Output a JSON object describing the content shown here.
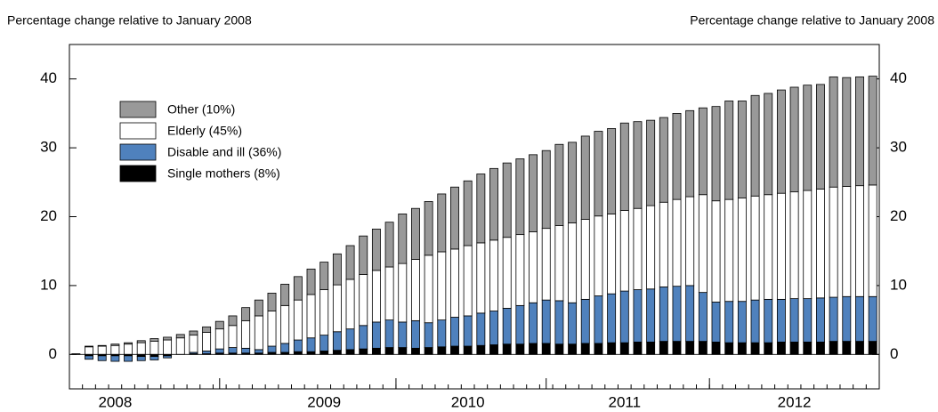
{
  "chart_data": {
    "type": "stacked_bar",
    "ylabel": "Percentage change relative to January 2008",
    "categories": [
      null,
      null,
      null,
      "2008",
      null,
      null,
      null,
      null,
      null,
      null,
      null,
      null,
      null,
      null,
      null,
      null,
      null,
      null,
      null,
      "2009",
      null,
      null,
      null,
      null,
      null,
      null,
      null,
      null,
      null,
      null,
      "2010",
      null,
      null,
      null,
      null,
      null,
      null,
      null,
      null,
      null,
      null,
      null,
      "2011",
      null,
      null,
      null,
      null,
      null,
      null,
      null,
      null,
      null,
      null,
      null,
      null,
      "2012",
      null,
      null,
      null,
      null,
      null,
      null
    ],
    "series": [
      {
        "name": "Single mothers (8%)",
        "color": "#000000",
        "values": [
          0,
          -0.2,
          -0.2,
          -0.2,
          -0.2,
          -0.3,
          -0.3,
          -0.2,
          0,
          0.1,
          0.1,
          0.2,
          0.2,
          0.2,
          0.2,
          0.3,
          0.3,
          0.4,
          0.4,
          0.5,
          0.6,
          0.7,
          0.8,
          0.9,
          1.0,
          1.0,
          0.9,
          1.0,
          1.1,
          1.2,
          1.2,
          1.3,
          1.4,
          1.5,
          1.5,
          1.6,
          1.6,
          1.5,
          1.5,
          1.6,
          1.6,
          1.7,
          1.7,
          1.8,
          1.8,
          1.9,
          1.9,
          1.9,
          1.9,
          1.8,
          1.7,
          1.7,
          1.7,
          1.7,
          1.8,
          1.8,
          1.8,
          1.8,
          1.9,
          1.9,
          1.9,
          1.9
        ]
      },
      {
        "name": "Disable and ill (36%)",
        "color": "#4f81bd",
        "values": [
          0,
          -0.5,
          -0.7,
          -0.8,
          -0.8,
          -0.6,
          -0.5,
          -0.3,
          0,
          0.2,
          0.4,
          0.6,
          0.8,
          0.7,
          0.5,
          0.9,
          1.3,
          1.7,
          2.0,
          2.3,
          2.7,
          3.0,
          3.4,
          3.8,
          4.0,
          3.7,
          4.0,
          3.6,
          3.9,
          4.2,
          4.4,
          4.7,
          4.9,
          5.2,
          5.6,
          5.9,
          6.3,
          6.3,
          6.0,
          6.4,
          6.9,
          7.1,
          7.5,
          7.6,
          7.7,
          7.9,
          8.0,
          8.1,
          7.1,
          5.8,
          6.0,
          6.0,
          6.2,
          6.3,
          6.2,
          6.3,
          6.3,
          6.4,
          6.4,
          6.5,
          6.5,
          6.5
        ]
      },
      {
        "name": "Elderly (45%)",
        "color": "#ffffff",
        "values": [
          0.1,
          1.1,
          1.2,
          1.3,
          1.5,
          1.7,
          1.9,
          2.1,
          2.4,
          2.5,
          2.7,
          2.9,
          3.2,
          4.0,
          4.9,
          5.1,
          5.5,
          5.8,
          6.3,
          6.6,
          6.8,
          7.2,
          7.4,
          7.5,
          7.7,
          8.5,
          8.9,
          9.8,
          9.9,
          9.9,
          10.2,
          10.2,
          10.3,
          10.3,
          10.3,
          10.3,
          10.4,
          10.9,
          11.6,
          11.6,
          11.6,
          11.6,
          11.7,
          11.8,
          12.1,
          12.3,
          12.6,
          12.9,
          14.2,
          14.7,
          14.8,
          15.0,
          15.1,
          15.2,
          15.4,
          15.5,
          15.7,
          15.8,
          16.0,
          16.0,
          16.1,
          16.2
        ]
      },
      {
        "name": "Other (10%)",
        "color": "#999999",
        "values": [
          0,
          0.1,
          0.1,
          0.2,
          0.2,
          0.3,
          0.4,
          0.4,
          0.5,
          0.6,
          0.8,
          1.1,
          1.4,
          1.9,
          2.3,
          2.6,
          3.1,
          3.4,
          3.7,
          4.0,
          4.5,
          4.9,
          5.6,
          6.0,
          6.5,
          7.2,
          7.4,
          7.8,
          8.4,
          9.0,
          9.4,
          10.0,
          10.4,
          10.8,
          11.0,
          11.2,
          11.3,
          11.8,
          11.7,
          12.1,
          12.3,
          12.4,
          12.7,
          12.6,
          12.4,
          12.3,
          12.5,
          12.5,
          12.6,
          13.7,
          14.3,
          14.1,
          14.6,
          14.7,
          15.0,
          15.2,
          15.3,
          15.2,
          16.0,
          15.8,
          15.8,
          15.8
        ]
      }
    ],
    "ylim": [
      -5,
      45
    ],
    "yticks": [
      0,
      10,
      20,
      30,
      40
    ],
    "legend": "upper left",
    "grid": false
  }
}
